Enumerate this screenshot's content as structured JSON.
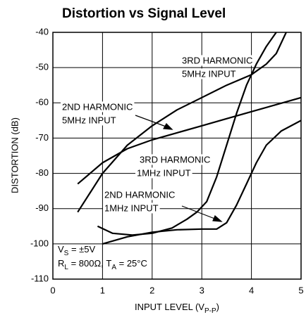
{
  "chart_data": {
    "type": "line",
    "title": "Distortion vs Signal Level",
    "y_label": "DISTORTION (dB)",
    "x_label": [
      "INPUT LEVEL (V",
      "P-P",
      ")"
    ],
    "xlim": [
      0,
      5
    ],
    "xticks": [
      0,
      1,
      2,
      3,
      4,
      5
    ],
    "ylim": [
      -110,
      -40
    ],
    "yticks": [
      -40,
      -50,
      -60,
      -70,
      -80,
      -90,
      -100,
      -110
    ],
    "grid": true,
    "series": [
      {
        "name": [
          "3RD HARMONIC",
          "5MHz INPUT"
        ],
        "color": "#000000",
        "x": [
          0.5,
          1,
          1.5,
          2,
          2.5,
          3,
          3.5,
          4,
          4.3,
          4.5,
          4.7
        ],
        "values": [
          -91,
          -80,
          -72,
          -66.5,
          -62,
          -58.5,
          -55,
          -52,
          -49,
          -46,
          -40
        ]
      },
      {
        "name": [
          "2ND HARMONIC",
          "5MHz INPUT"
        ],
        "color": "#000000",
        "x": [
          0.5,
          1,
          1.5,
          2,
          2.5,
          3,
          3.5,
          4,
          4.5,
          5
        ],
        "values": [
          -83,
          -77,
          -73,
          -70.5,
          -68.5,
          -66.5,
          -64.5,
          -62.5,
          -60.5,
          -58.5
        ]
      },
      {
        "name": [
          "3RD HARMONIC",
          "1MHz INPUT"
        ],
        "color": "#000000",
        "x": [
          0.9,
          1.2,
          1.6,
          2,
          2.4,
          2.7,
          2.9,
          3.1,
          3.3,
          3.5,
          3.7,
          3.9,
          4.1,
          4.3,
          4.5
        ],
        "values": [
          -95,
          -97,
          -97.5,
          -97,
          -95.5,
          -93,
          -91,
          -88,
          -81,
          -72,
          -63,
          -55,
          -49,
          -44,
          -40
        ]
      },
      {
        "name": [
          "2ND HARMONIC",
          "1MHz INPUT"
        ],
        "color": "#000000",
        "x": [
          1,
          1.5,
          2,
          2.5,
          3,
          3.3,
          3.5,
          3.7,
          3.9,
          4.1,
          4.3,
          4.6,
          5
        ],
        "values": [
          -100,
          -98,
          -96.7,
          -96,
          -95.8,
          -95.8,
          -94,
          -89,
          -83,
          -77,
          -72,
          -68,
          -65
        ]
      }
    ],
    "conditions": [
      [
        "V",
        "S",
        " = ±5V"
      ],
      [
        "R",
        "L",
        " = 800Ω, T",
        "A",
        " = 25°C"
      ]
    ]
  }
}
